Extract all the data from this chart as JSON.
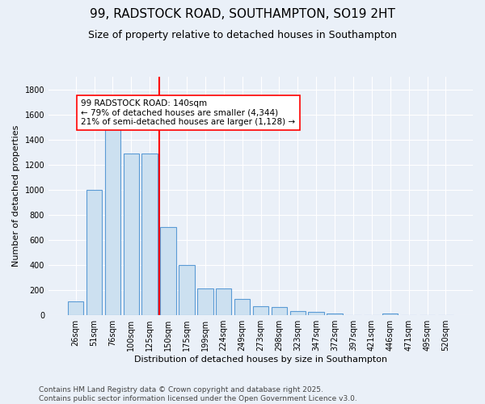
{
  "title": "99, RADSTOCK ROAD, SOUTHAMPTON, SO19 2HT",
  "subtitle": "Size of property relative to detached houses in Southampton",
  "xlabel": "Distribution of detached houses by size in Southampton",
  "ylabel": "Number of detached properties",
  "categories": [
    "26sqm",
    "51sqm",
    "76sqm",
    "100sqm",
    "125sqm",
    "150sqm",
    "175sqm",
    "199sqm",
    "224sqm",
    "249sqm",
    "273sqm",
    "298sqm",
    "323sqm",
    "347sqm",
    "372sqm",
    "397sqm",
    "421sqm",
    "446sqm",
    "471sqm",
    "495sqm",
    "520sqm"
  ],
  "values": [
    110,
    1000,
    1500,
    1290,
    1290,
    700,
    400,
    215,
    215,
    130,
    75,
    65,
    35,
    30,
    15,
    0,
    0,
    15,
    0,
    0,
    0
  ],
  "bar_color": "#cce0f0",
  "bar_edgecolor": "#5b9bd5",
  "vline_color": "red",
  "annotation_text": "99 RADSTOCK ROAD: 140sqm\n← 79% of detached houses are smaller (4,344)\n21% of semi-detached houses are larger (1,128) →",
  "annotation_box_color": "white",
  "annotation_box_edgecolor": "red",
  "footer": "Contains HM Land Registry data © Crown copyright and database right 2025.\nContains public sector information licensed under the Open Government Licence v3.0.",
  "bg_color": "#eaf0f8",
  "plot_bg_color": "#eaf0f8",
  "ylim": [
    0,
    1900
  ],
  "title_fontsize": 11,
  "subtitle_fontsize": 9,
  "xlabel_fontsize": 8,
  "ylabel_fontsize": 8,
  "footer_fontsize": 6.5,
  "tick_fontsize": 7,
  "annotation_fontsize": 7.5
}
